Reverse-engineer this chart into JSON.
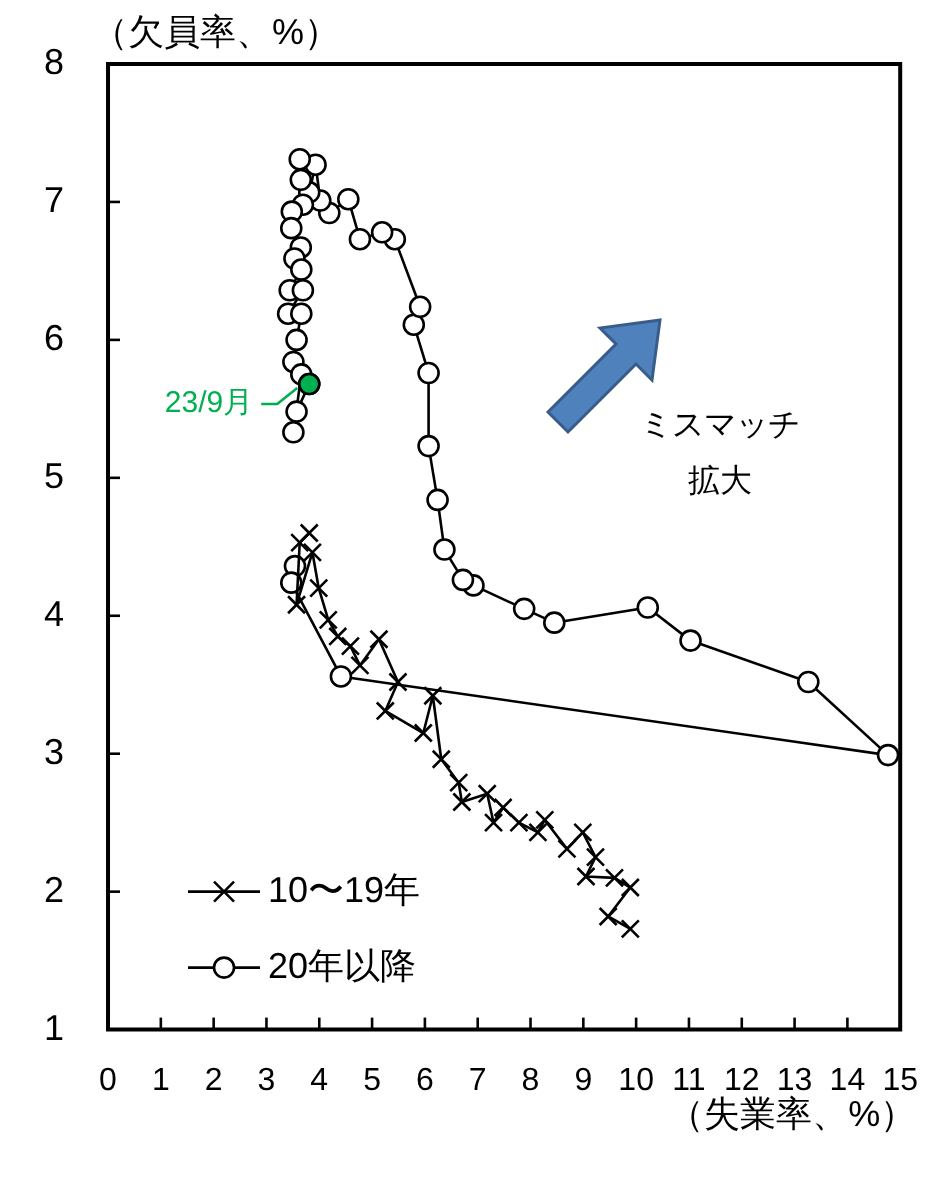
{
  "chart_data": {
    "type": "line",
    "xlabel": "（失業率、%）",
    "ylabel": "（欠員率、%）",
    "xlim": [
      0,
      15
    ],
    "xticks": [
      0,
      1,
      2,
      3,
      4,
      5,
      6,
      7,
      8,
      9,
      10,
      11,
      12,
      13,
      14,
      15
    ],
    "ylim": [
      1,
      8
    ],
    "yticks": [
      1,
      2,
      3,
      4,
      5,
      6,
      7,
      8
    ],
    "legend": "bottom left",
    "series": [
      {
        "name": "10〜19年",
        "color": "#000000",
        "marker": "cross",
        "x": [
          9.89,
          9.47,
          9.89,
          9.59,
          9.05,
          9.23,
          8.99,
          8.69,
          8.27,
          8.14,
          7.78,
          7.48,
          7.3,
          7.18,
          6.7,
          6.64,
          6.31,
          6.15,
          5.97,
          5.25,
          5.49,
          5.13,
          4.77,
          4.59,
          4.35,
          4.17,
          3.99,
          3.87,
          3.57,
          3.63,
          3.81
        ],
        "values": [
          1.73,
          1.82,
          2.03,
          2.1,
          2.11,
          2.25,
          2.43,
          2.31,
          2.52,
          2.43,
          2.5,
          2.61,
          2.5,
          2.71,
          2.65,
          2.79,
          2.96,
          3.42,
          3.15,
          3.31,
          3.52,
          3.83,
          3.64,
          3.78,
          3.85,
          3.97,
          4.2,
          4.46,
          4.08,
          4.53,
          4.6
        ]
      },
      {
        "name": "20年以降",
        "color": "#000000",
        "marker": "circle",
        "x": [
          3.54,
          3.47,
          4.41,
          14.77,
          13.26,
          11.03,
          10.22,
          8.45,
          7.88,
          6.92,
          6.72,
          6.37,
          6.24,
          6.07,
          6.07,
          5.79,
          5.91,
          5.43,
          5.19,
          4.77,
          4.55,
          4.19,
          4.02,
          3.93,
          3.81,
          3.63,
          3.65,
          3.69,
          3.48,
          3.47,
          3.65,
          3.53,
          3.66,
          3.44,
          3.69,
          3.41,
          3.66,
          3.57,
          3.51,
          3.66,
          3.51,
          3.57,
          3.81
        ],
        "values": [
          4.36,
          4.24,
          3.56,
          2.99,
          3.52,
          3.82,
          4.06,
          3.95,
          4.05,
          4.22,
          4.26,
          4.48,
          4.84,
          5.23,
          5.76,
          6.11,
          6.24,
          6.73,
          6.78,
          6.73,
          7.02,
          6.92,
          7.01,
          7.27,
          7.07,
          7.31,
          7.16,
          6.98,
          6.93,
          6.81,
          6.67,
          6.59,
          6.51,
          6.36,
          6.36,
          6.19,
          6.19,
          6.0,
          5.84,
          5.75,
          5.33,
          5.48,
          5.68
        ]
      },
      {
        "type": "scatter",
        "color": "#00b050",
        "marker": "circle",
        "x": [
          3.81
        ],
        "values": [
          5.68
        ]
      }
    ],
    "annotations": [
      {
        "text": "23/9月",
        "x": 3.81,
        "y": 5.68
      },
      "ミスマッチ拡大"
    ]
  }
}
